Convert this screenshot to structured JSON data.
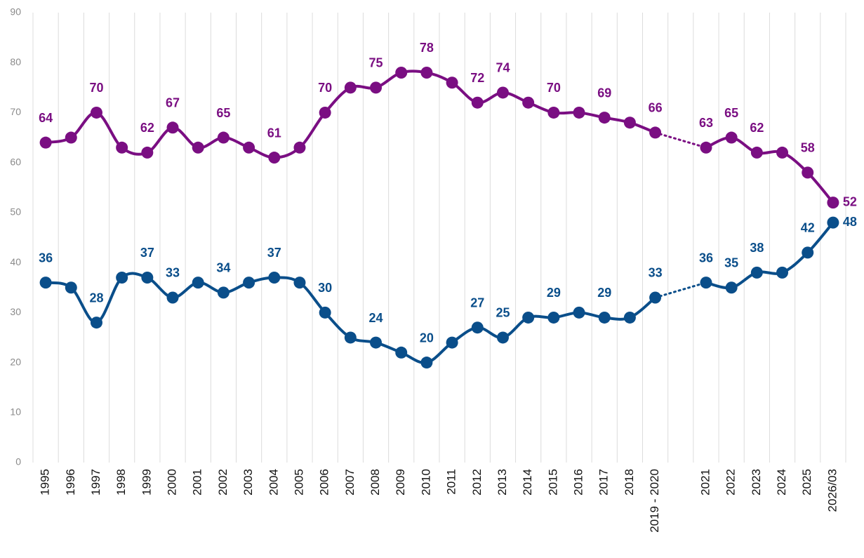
{
  "chart_data": {
    "type": "line",
    "categories": [
      "1995",
      "1996",
      "1997",
      "1998",
      "1999",
      "2000",
      "2001",
      "2002",
      "2003",
      "2004",
      "2005",
      "2006",
      "2007",
      "2008",
      "2009",
      "2010",
      "2011",
      "2012",
      "2013",
      "2014",
      "2015",
      "2016",
      "2017",
      "2018",
      "2019 - 2020",
      null,
      "2021",
      "2022",
      "2023",
      "2024",
      "2025",
      "2026/03"
    ],
    "series": [
      {
        "color": "#7a0e82",
        "values": [
          64,
          65,
          70,
          63,
          62,
          67,
          63,
          65,
          63,
          61,
          63,
          70,
          75,
          75,
          78,
          78,
          76,
          72,
          74,
          72,
          70,
          70,
          69,
          68,
          66,
          null,
          63,
          65,
          62,
          62,
          58,
          52
        ],
        "value_labels": [
          "64",
          null,
          "70",
          null,
          "62",
          "67",
          null,
          "65",
          null,
          "61",
          null,
          "70",
          null,
          "75",
          null,
          "78",
          null,
          "72",
          "74",
          null,
          "70",
          null,
          "69",
          null,
          "66",
          null,
          "63",
          "65",
          "62",
          null,
          "58",
          "52"
        ]
      },
      {
        "color": "#0a4e8a",
        "values": [
          36,
          35,
          28,
          37,
          37,
          33,
          36,
          34,
          36,
          37,
          36,
          30,
          25,
          24,
          22,
          20,
          24,
          27,
          25,
          29,
          29,
          30,
          29,
          29,
          33,
          null,
          36,
          35,
          38,
          38,
          42,
          48
        ],
        "value_labels": [
          "36",
          null,
          "28",
          null,
          "37",
          "33",
          null,
          "34",
          null,
          "37",
          null,
          "30",
          null,
          "24",
          null,
          "20",
          null,
          "27",
          "25",
          null,
          "29",
          null,
          "29",
          null,
          "33",
          null,
          "36",
          "35",
          "38",
          null,
          "42",
          "48"
        ]
      }
    ],
    "ylim": [
      0,
      90
    ],
    "yticks": [
      0,
      10,
      20,
      30,
      40,
      50,
      60,
      70,
      80,
      90
    ],
    "grid": true
  }
}
